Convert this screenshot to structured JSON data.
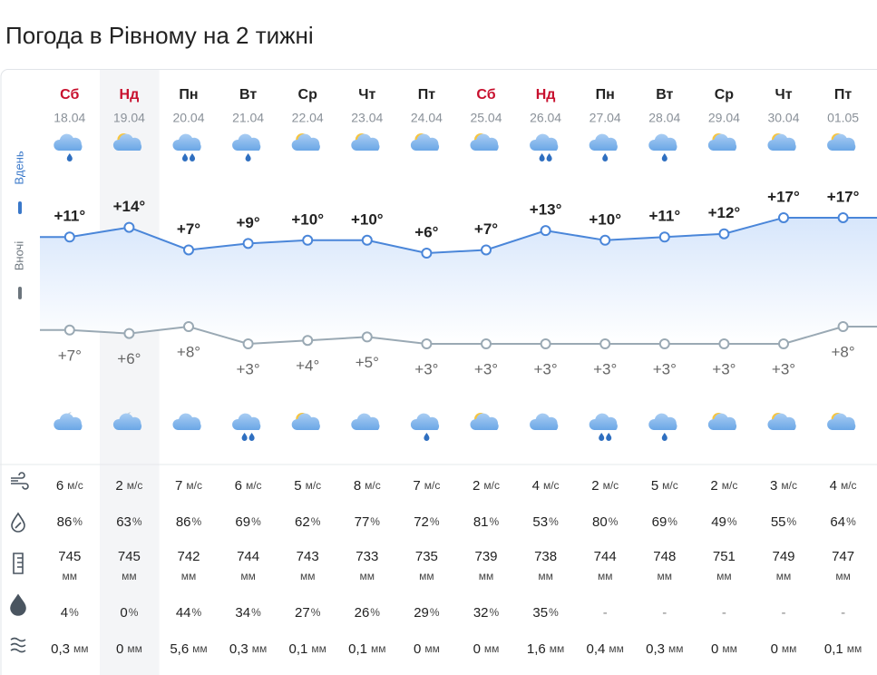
{
  "header": {
    "title": "Погода в Рівному на 2 тижні"
  },
  "forecast": {
    "side_labels": {
      "day": "Вдень",
      "night": "Вночі"
    },
    "weekend_color": "#c8102e",
    "days": [
      {
        "weekday": "Сб",
        "date": "18.04",
        "weekend": true
      },
      {
        "weekday": "Нд",
        "date": "19.04",
        "weekend": true
      },
      {
        "weekday": "Пн",
        "date": "20.04",
        "weekend": false
      },
      {
        "weekday": "Вт",
        "date": "21.04",
        "weekend": false
      },
      {
        "weekday": "Ср",
        "date": "22.04",
        "weekend": false
      },
      {
        "weekday": "Чт",
        "date": "23.04",
        "weekend": false
      },
      {
        "weekday": "Пт",
        "date": "24.04",
        "weekend": false
      },
      {
        "weekday": "Сб",
        "date": "25.04",
        "weekend": true
      },
      {
        "weekday": "Нд",
        "date": "26.04",
        "weekend": true
      },
      {
        "weekday": "Пн",
        "date": "27.04",
        "weekend": false
      },
      {
        "weekday": "Вт",
        "date": "28.04",
        "weekend": false
      },
      {
        "weekday": "Ср",
        "date": "29.04",
        "weekend": false
      },
      {
        "weekday": "Чт",
        "date": "30.04",
        "weekend": false
      },
      {
        "weekday": "Пт",
        "date": "01.05",
        "weekend": false
      }
    ],
    "day_temps": [
      11,
      14,
      7,
      9,
      10,
      10,
      6,
      7,
      13,
      10,
      11,
      12,
      17,
      17
    ],
    "day_temp_labels": [
      "+11°",
      "+14°",
      "+7°",
      "+9°",
      "+10°",
      "+10°",
      "+6°",
      "+7°",
      "+13°",
      "+10°",
      "+11°",
      "+12°",
      "+17°",
      "+17°"
    ],
    "night_temps": [
      7,
      6,
      8,
      3,
      4,
      5,
      3,
      3,
      3,
      3,
      3,
      3,
      3,
      8
    ],
    "night_temp_labels": [
      "+7°",
      "+6°",
      "+8°",
      "+3°",
      "+4°",
      "+5°",
      "+3°",
      "+3°",
      "+3°",
      "+3°",
      "+3°",
      "+3°",
      "+3°",
      "+8°"
    ],
    "rows": [
      {
        "unit": "м/с",
        "values": [
          6,
          2,
          7,
          6,
          5,
          8,
          7,
          2,
          4,
          2,
          5,
          2,
          3,
          4
        ]
      },
      {
        "unit": "%",
        "values": [
          86,
          63,
          86,
          69,
          62,
          77,
          72,
          81,
          53,
          80,
          69,
          49,
          55,
          64
        ]
      },
      {
        "unit": "мм",
        "values": [
          745,
          745,
          742,
          744,
          743,
          733,
          735,
          739,
          738,
          744,
          748,
          751,
          749,
          747
        ]
      },
      {
        "unit": "%",
        "values": [
          4,
          0,
          44,
          34,
          27,
          26,
          29,
          32,
          35,
          "-",
          "-",
          "-",
          "-",
          "-"
        ]
      },
      {
        "unit": "мм",
        "values": [
          "0,3",
          "0",
          "5,6",
          "0,3",
          "0,1",
          "0,1",
          "0",
          "0",
          "1,6",
          "0,4",
          "0,3",
          "0",
          "0",
          "0,1"
        ]
      }
    ]
  }
}
